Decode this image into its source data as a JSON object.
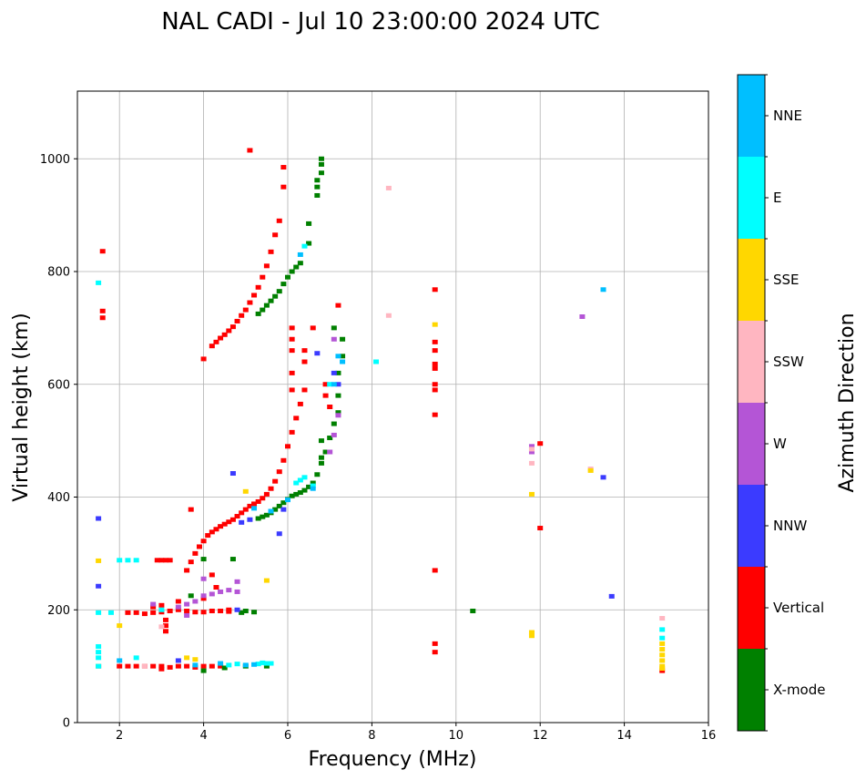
{
  "chart_data": {
    "type": "scatter",
    "title": "NAL CADI - Jul 10 23:00:00 2024 UTC",
    "xlabel": "Frequency (MHz)",
    "ylabel": "Virtual height (km)",
    "xlim": [
      1,
      16
    ],
    "ylim": [
      0,
      1120
    ],
    "x_ticks": [
      2,
      4,
      6,
      8,
      10,
      12,
      14,
      16
    ],
    "y_ticks": [
      0,
      200,
      400,
      600,
      800,
      1000
    ],
    "grid": true,
    "colorbar": {
      "title": "Azimuth Direction",
      "categories": [
        {
          "name": "X-mode",
          "color": "#008000"
        },
        {
          "name": "Vertical",
          "color": "#ff0000"
        },
        {
          "name": "NNW",
          "color": "#3b3bff"
        },
        {
          "name": "W",
          "color": "#b455d6"
        },
        {
          "name": "SSW",
          "color": "#ffb6c1"
        },
        {
          "name": "SSE",
          "color": "#ffd700"
        },
        {
          "name": "E",
          "color": "#00ffff"
        },
        {
          "name": "NNE",
          "color": "#00bfff"
        }
      ]
    },
    "series": [
      {
        "name": "Vertical",
        "color": "#ff0000",
        "points": [
          [
            3.6,
            270
          ],
          [
            3.7,
            285
          ],
          [
            3.8,
            300
          ],
          [
            3.9,
            312
          ],
          [
            4.0,
            322
          ],
          [
            4.1,
            332
          ],
          [
            4.2,
            338
          ],
          [
            4.3,
            343
          ],
          [
            4.4,
            348
          ],
          [
            4.5,
            352
          ],
          [
            4.6,
            356
          ],
          [
            4.7,
            360
          ],
          [
            4.8,
            366
          ],
          [
            4.9,
            372
          ],
          [
            5.0,
            378
          ],
          [
            5.1,
            384
          ],
          [
            5.2,
            388
          ],
          [
            5.3,
            392
          ],
          [
            5.4,
            398
          ],
          [
            5.5,
            405
          ],
          [
            5.6,
            415
          ],
          [
            5.7,
            428
          ],
          [
            5.8,
            445
          ],
          [
            5.9,
            465
          ],
          [
            6.0,
            490
          ],
          [
            6.1,
            515
          ],
          [
            6.2,
            540
          ],
          [
            6.3,
            565
          ],
          [
            6.4,
            590
          ],
          [
            4.2,
            668
          ],
          [
            4.3,
            675
          ],
          [
            4.4,
            682
          ],
          [
            4.5,
            688
          ],
          [
            4.6,
            695
          ],
          [
            4.7,
            702
          ],
          [
            4.8,
            712
          ],
          [
            4.9,
            722
          ],
          [
            5.0,
            732
          ],
          [
            5.1,
            745
          ],
          [
            5.2,
            758
          ],
          [
            5.3,
            772
          ],
          [
            5.4,
            790
          ],
          [
            5.5,
            810
          ],
          [
            5.6,
            835
          ],
          [
            5.7,
            865
          ],
          [
            5.8,
            890
          ],
          [
            5.9,
            950
          ],
          [
            5.9,
            985
          ],
          [
            5.1,
            1015
          ],
          [
            6.1,
            700
          ],
          [
            6.1,
            680
          ],
          [
            6.1,
            660
          ],
          [
            6.1,
            620
          ],
          [
            6.1,
            590
          ],
          [
            6.4,
            640
          ],
          [
            6.4,
            660
          ],
          [
            6.9,
            600
          ],
          [
            6.9,
            580
          ],
          [
            7.0,
            560
          ],
          [
            6.6,
            700
          ],
          [
            7.2,
            740
          ],
          [
            1.6,
            836
          ],
          [
            1.6,
            718
          ],
          [
            1.6,
            730
          ],
          [
            2.2,
            195
          ],
          [
            2.4,
            195
          ],
          [
            2.6,
            193
          ],
          [
            2.8,
            195
          ],
          [
            3.0,
            196
          ],
          [
            3.2,
            198
          ],
          [
            3.4,
            200
          ],
          [
            3.6,
            198
          ],
          [
            3.8,
            196
          ],
          [
            4.0,
            196
          ],
          [
            4.2,
            198
          ],
          [
            4.4,
            198
          ],
          [
            4.6,
            197
          ],
          [
            2.8,
            205
          ],
          [
            3.0,
            208
          ],
          [
            3.4,
            215
          ],
          [
            2.0,
            100
          ],
          [
            2.2,
            100
          ],
          [
            2.4,
            100
          ],
          [
            2.6,
            100
          ],
          [
            2.8,
            100
          ],
          [
            3.0,
            100
          ],
          [
            3.2,
            98
          ],
          [
            3.4,
            100
          ],
          [
            3.6,
            100
          ],
          [
            3.8,
            98
          ],
          [
            4.0,
            100
          ],
          [
            4.2,
            100
          ],
          [
            4.4,
            100
          ],
          [
            3.0,
            95
          ],
          [
            3.0,
            288
          ],
          [
            3.2,
            288
          ],
          [
            2.9,
            288
          ],
          [
            3.1,
            288
          ],
          [
            3.7,
            378
          ],
          [
            4.0,
            645
          ],
          [
            4.2,
            262
          ],
          [
            4.3,
            240
          ],
          [
            4.6,
            200
          ],
          [
            4.0,
            220
          ],
          [
            3.1,
            162
          ],
          [
            3.1,
            172
          ],
          [
            3.1,
            182
          ],
          [
            9.5,
            768
          ],
          [
            9.5,
            675
          ],
          [
            9.5,
            660
          ],
          [
            9.5,
            636
          ],
          [
            9.5,
            628
          ],
          [
            9.5,
            600
          ],
          [
            9.5,
            590
          ],
          [
            9.5,
            546
          ],
          [
            9.5,
            270
          ],
          [
            9.5,
            140
          ],
          [
            9.5,
            125
          ],
          [
            12.0,
            345
          ],
          [
            12.0,
            495
          ],
          [
            14.9,
            92
          ]
        ]
      },
      {
        "name": "X-mode",
        "color": "#008000",
        "points": [
          [
            5.3,
            362
          ],
          [
            5.4,
            365
          ],
          [
            5.5,
            368
          ],
          [
            5.6,
            372
          ],
          [
            5.7,
            378
          ],
          [
            5.8,
            384
          ],
          [
            5.9,
            390
          ],
          [
            6.0,
            396
          ],
          [
            6.1,
            402
          ],
          [
            6.2,
            405
          ],
          [
            6.3,
            408
          ],
          [
            6.4,
            412
          ],
          [
            6.5,
            418
          ],
          [
            6.6,
            425
          ],
          [
            6.7,
            440
          ],
          [
            6.8,
            460
          ],
          [
            6.9,
            480
          ],
          [
            7.0,
            505
          ],
          [
            7.1,
            530
          ],
          [
            7.2,
            550
          ],
          [
            7.2,
            580
          ],
          [
            7.2,
            620
          ],
          [
            7.3,
            650
          ],
          [
            7.3,
            680
          ],
          [
            7.1,
            700
          ],
          [
            6.8,
            500
          ],
          [
            6.8,
            470
          ],
          [
            5.3,
            725
          ],
          [
            5.4,
            732
          ],
          [
            5.5,
            740
          ],
          [
            5.6,
            748
          ],
          [
            5.7,
            756
          ],
          [
            5.8,
            765
          ],
          [
            5.9,
            778
          ],
          [
            6.0,
            790
          ],
          [
            6.1,
            800
          ],
          [
            6.2,
            808
          ],
          [
            6.3,
            815
          ],
          [
            6.5,
            850
          ],
          [
            6.5,
            885
          ],
          [
            6.7,
            935
          ],
          [
            6.7,
            950
          ],
          [
            6.7,
            962
          ],
          [
            6.8,
            975
          ],
          [
            6.8,
            990
          ],
          [
            6.8,
            1000
          ],
          [
            4.0,
            92
          ],
          [
            4.5,
            97
          ],
          [
            5.0,
            100
          ],
          [
            5.5,
            100
          ],
          [
            4.9,
            195
          ],
          [
            5.0,
            198
          ],
          [
            5.2,
            196
          ],
          [
            3.7,
            225
          ],
          [
            4.0,
            290
          ],
          [
            4.7,
            290
          ],
          [
            10.4,
            198
          ]
        ]
      },
      {
        "name": "NNW",
        "color": "#3b3bff",
        "points": [
          [
            1.5,
            100
          ],
          [
            1.5,
            242
          ],
          [
            1.5,
            362
          ],
          [
            4.9,
            355
          ],
          [
            5.1,
            360
          ],
          [
            5.9,
            378
          ],
          [
            5.8,
            335
          ],
          [
            6.7,
            655
          ],
          [
            7.1,
            620
          ],
          [
            7.2,
            600
          ],
          [
            4.7,
            442
          ],
          [
            4.8,
            200
          ],
          [
            3.4,
            110
          ],
          [
            13.7,
            224
          ],
          [
            13.5,
            435
          ]
        ]
      },
      {
        "name": "W",
        "color": "#b455d6",
        "points": [
          [
            3.4,
            205
          ],
          [
            3.6,
            210
          ],
          [
            3.8,
            215
          ],
          [
            4.0,
            225
          ],
          [
            4.2,
            228
          ],
          [
            4.4,
            232
          ],
          [
            4.6,
            235
          ],
          [
            4.8,
            232
          ],
          [
            4.0,
            255
          ],
          [
            4.8,
            250
          ],
          [
            2.8,
            210
          ],
          [
            3.6,
            190
          ],
          [
            7.2,
            545
          ],
          [
            7.1,
            510
          ],
          [
            13.0,
            720
          ],
          [
            7.0,
            480
          ],
          [
            7.1,
            680
          ],
          [
            11.8,
            490
          ],
          [
            11.8,
            480
          ]
        ]
      },
      {
        "name": "SSW",
        "color": "#ffb6c1",
        "points": [
          [
            8.4,
            948
          ],
          [
            8.4,
            722
          ],
          [
            14.9,
            185
          ],
          [
            11.8,
            460
          ],
          [
            11.8,
            485
          ],
          [
            13.2,
            450
          ],
          [
            3.0,
            170
          ],
          [
            2.6,
            100
          ]
        ]
      },
      {
        "name": "SSE",
        "color": "#ffd700",
        "points": [
          [
            1.5,
            287
          ],
          [
            1.5,
            100
          ],
          [
            5.0,
            410
          ],
          [
            5.5,
            252
          ],
          [
            9.5,
            706
          ],
          [
            11.8,
            405
          ],
          [
            11.8,
            160
          ],
          [
            11.8,
            154
          ],
          [
            13.2,
            447
          ],
          [
            14.9,
            140
          ],
          [
            14.9,
            130
          ],
          [
            14.9,
            120
          ],
          [
            14.9,
            110
          ],
          [
            14.9,
            100
          ],
          [
            14.9,
            96
          ],
          [
            2.0,
            172
          ],
          [
            3.6,
            115
          ],
          [
            3.8,
            112
          ]
        ]
      },
      {
        "name": "E",
        "color": "#00ffff",
        "points": [
          [
            1.5,
            780
          ],
          [
            1.5,
            135
          ],
          [
            1.5,
            125
          ],
          [
            1.5,
            115
          ],
          [
            1.5,
            100
          ],
          [
            1.5,
            195
          ],
          [
            2.0,
            288
          ],
          [
            2.2,
            288
          ],
          [
            2.4,
            288
          ],
          [
            1.8,
            195
          ],
          [
            5.5,
            105
          ],
          [
            5.3,
            104
          ],
          [
            5.4,
            106
          ],
          [
            5.6,
            105
          ],
          [
            4.8,
            104
          ],
          [
            4.6,
            102
          ],
          [
            6.4,
            845
          ],
          [
            6.2,
            425
          ],
          [
            6.3,
            430
          ],
          [
            6.4,
            435
          ],
          [
            7.0,
            600
          ],
          [
            8.1,
            640
          ],
          [
            14.9,
            165
          ],
          [
            14.9,
            150
          ],
          [
            3.0,
            200
          ],
          [
            2.4,
            115
          ],
          [
            6.6,
            420
          ]
        ]
      },
      {
        "name": "NNE",
        "color": "#00bfff",
        "points": [
          [
            5.2,
            380
          ],
          [
            5.6,
            375
          ],
          [
            6.0,
            395
          ],
          [
            6.3,
            830
          ],
          [
            7.2,
            650
          ],
          [
            7.3,
            640
          ],
          [
            13.5,
            768
          ],
          [
            5.0,
            102
          ],
          [
            5.2,
            103
          ],
          [
            3.8,
            102
          ],
          [
            4.4,
            105
          ],
          [
            2.0,
            110
          ],
          [
            6.6,
            415
          ],
          [
            7.1,
            600
          ]
        ]
      }
    ]
  }
}
